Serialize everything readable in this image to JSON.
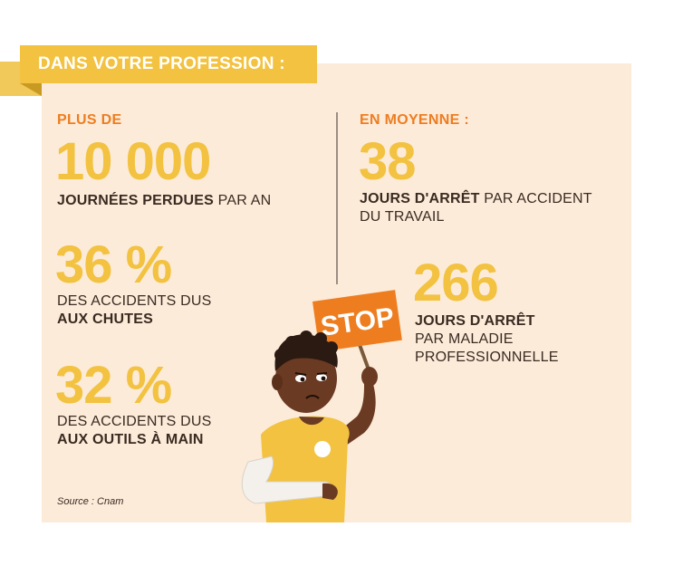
{
  "header": {
    "title": "DANS VOTRE PROFESSION :"
  },
  "left": {
    "stat1": {
      "prefix": "PLUS DE",
      "value": "10 000",
      "desc_bold": "JOURNÉES PERDUES",
      "desc_rest": " PAR AN"
    },
    "stat2": {
      "value": "36 %",
      "desc_line1": "DES ACCIDENTS DUS",
      "desc_bold": "AUX CHUTES"
    },
    "stat3": {
      "value": "32 %",
      "desc_line1": "DES ACCIDENTS DUS",
      "desc_bold": "AUX OUTILS À MAIN"
    }
  },
  "right": {
    "stat1": {
      "prefix": "EN MOYENNE :",
      "value": "38",
      "desc_bold": "JOURS D'ARRÊT",
      "desc_rest": " PAR ACCIDENT",
      "desc_line2": "DU TRAVAIL"
    },
    "stat2": {
      "value": "266",
      "desc_bold": "JOURS D'ARRÊT",
      "desc_line2": "PAR MALADIE",
      "desc_line3": "PROFESSIONNELLE"
    }
  },
  "sign": {
    "text": "STOP"
  },
  "footer": {
    "source": "Source : Cnam"
  },
  "colors": {
    "orange": "#ee7d20",
    "yellow": "#f2c240",
    "panel_bg": "#fcebd9",
    "text": "#3a2b22"
  }
}
